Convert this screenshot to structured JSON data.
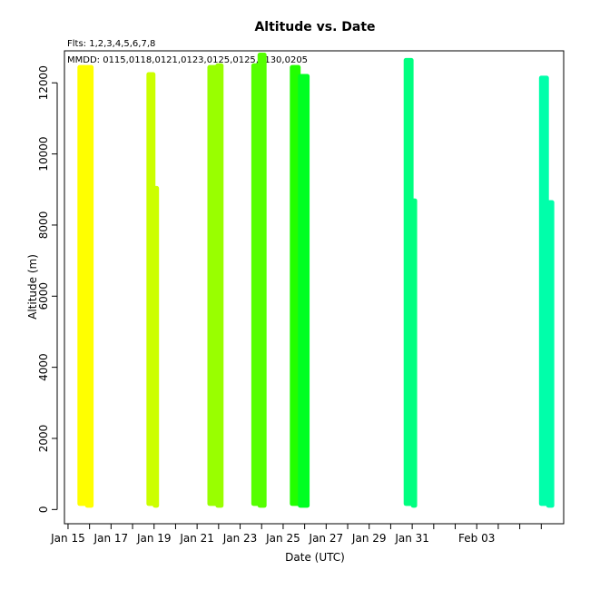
{
  "chart_data": {
    "type": "scatter",
    "title": "Altitude  vs. Date",
    "notes": [
      "Flts: 1,2,3,4,5,6,7,8",
      "MMDD: 0115,0118,0121,0123,0125,0125,0130,0205"
    ],
    "xlabel": "Date (UTC)",
    "ylabel": "Altitude (m)",
    "x_tick_labels": [
      "Jan 15",
      "Jan 17",
      "Jan 19",
      "Jan 21",
      "Jan 23",
      "Jan 25",
      "Jan 27",
      "Jan 29",
      "Jan 31",
      "Feb 03"
    ],
    "x_tick_dates": [
      "2013-01-15",
      "2013-01-17",
      "2013-01-19",
      "2013-01-21",
      "2013-01-23",
      "2013-01-25",
      "2013-01-27",
      "2013-01-29",
      "2013-01-31",
      "2013-02-03"
    ],
    "y_ticks": [
      0,
      2000,
      4000,
      6000,
      8000,
      10000,
      12000
    ],
    "xlim": [
      "2013-01-14T20:00",
      "2013-02-07T01:00"
    ],
    "ylim": [
      -400,
      12900
    ],
    "grid": false,
    "legend": "none",
    "series": [
      {
        "name": "1",
        "color": "#ffff00",
        "segments": [
          {
            "start": "2013-01-15T12:00",
            "end": "2013-01-15T20:30",
            "min_alt": 100,
            "max_alt": 12500
          },
          {
            "start": "2013-01-15T20:30",
            "end": "2013-01-16T03:00",
            "min_alt": 50,
            "max_alt": 12500
          }
        ]
      },
      {
        "name": "2",
        "color": "#ccff00",
        "segments": [
          {
            "start": "2013-01-18T17:00",
            "end": "2013-01-19T00:00",
            "min_alt": 100,
            "max_alt": 12300
          },
          {
            "start": "2013-01-19T00:00",
            "end": "2013-01-19T04:00",
            "min_alt": 50,
            "max_alt": 9100
          }
        ]
      },
      {
        "name": "3",
        "color": "#99ff00",
        "segments": [
          {
            "start": "2013-01-21T13:00",
            "end": "2013-01-21T22:00",
            "min_alt": 100,
            "max_alt": 12500
          },
          {
            "start": "2013-01-21T22:00",
            "end": "2013-01-22T04:00",
            "min_alt": 50,
            "max_alt": 12550
          }
        ]
      },
      {
        "name": "4",
        "color": "#55ff00",
        "segments": [
          {
            "start": "2013-01-23T14:00",
            "end": "2013-01-23T21:00",
            "min_alt": 100,
            "max_alt": 12550
          },
          {
            "start": "2013-01-23T21:00",
            "end": "2013-01-24T04:00",
            "min_alt": 50,
            "max_alt": 12850
          }
        ]
      },
      {
        "name": "5",
        "color": "#22ff00",
        "segments": [
          {
            "start": "2013-01-25T09:00",
            "end": "2013-01-25T18:00",
            "min_alt": 100,
            "max_alt": 12500
          }
        ]
      },
      {
        "name": "6",
        "color": "#00ff22",
        "segments": [
          {
            "start": "2013-01-25T18:00",
            "end": "2013-01-26T04:00",
            "min_alt": 50,
            "max_alt": 12250
          }
        ]
      },
      {
        "name": "7",
        "color": "#00ff80",
        "segments": [
          {
            "start": "2013-01-30T16:00",
            "end": "2013-01-31T00:00",
            "min_alt": 100,
            "max_alt": 12700
          },
          {
            "start": "2013-01-31T00:00",
            "end": "2013-01-31T04:00",
            "min_alt": 50,
            "max_alt": 8750
          }
        ]
      },
      {
        "name": "8",
        "color": "#00ffaa",
        "segments": [
          {
            "start": "2013-02-05T23:00",
            "end": "2013-02-06T07:00",
            "min_alt": 100,
            "max_alt": 12200
          },
          {
            "start": "2013-02-06T07:00",
            "end": "2013-02-06T13:00",
            "min_alt": 50,
            "max_alt": 8700
          }
        ]
      }
    ]
  }
}
